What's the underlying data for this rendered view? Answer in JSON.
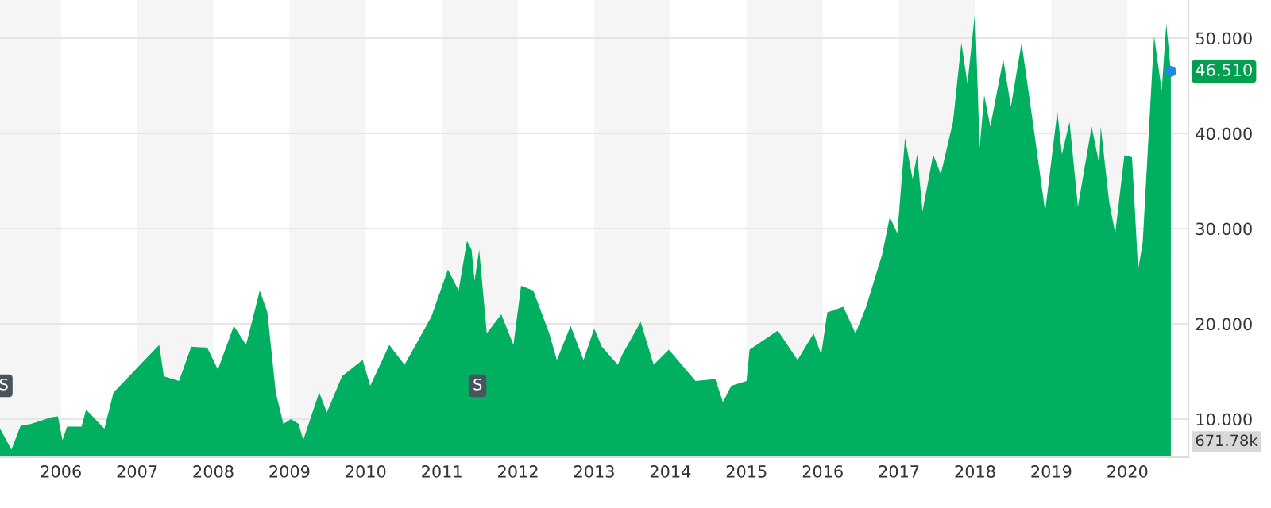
{
  "chart_data": {
    "type": "area",
    "x": [
      2005.2,
      2005.35,
      2005.47,
      2005.61,
      2005.88,
      2005.96,
      2006.02,
      2006.08,
      2006.27,
      2006.33,
      2006.57,
      2006.69,
      2006.98,
      2007.29,
      2007.35,
      2007.55,
      2007.71,
      2007.92,
      2008.06,
      2008.27,
      2008.43,
      2008.61,
      2008.71,
      2008.82,
      2008.92,
      2009.02,
      2009.12,
      2009.18,
      2009.39,
      2009.49,
      2009.69,
      2009.96,
      2010.06,
      2010.31,
      2010.51,
      2010.86,
      2011.08,
      2011.22,
      2011.33,
      2011.39,
      2011.43,
      2011.49,
      2011.59,
      2011.78,
      2011.94,
      2012.04,
      2012.2,
      2012.41,
      2012.51,
      2012.69,
      2012.86,
      2013.0,
      2013.1,
      2013.31,
      2013.37,
      2013.61,
      2013.78,
      2013.98,
      2014.33,
      2014.59,
      2014.69,
      2014.8,
      2015.0,
      2015.04,
      2015.41,
      2015.67,
      2015.88,
      2015.98,
      2016.06,
      2016.27,
      2016.43,
      2016.57,
      2016.78,
      2016.88,
      2016.98,
      2017.08,
      2017.18,
      2017.24,
      2017.31,
      2017.45,
      2017.55,
      2017.71,
      2017.82,
      2017.9,
      2018.0,
      2018.06,
      2018.12,
      2018.2,
      2018.37,
      2018.47,
      2018.61,
      2018.73,
      2018.92,
      2019.08,
      2019.14,
      2019.24,
      2019.35,
      2019.53,
      2019.63,
      2019.65,
      2019.76,
      2019.84,
      2019.96,
      2020.06,
      2020.14,
      2020.2,
      2020.35,
      2020.45,
      2020.51,
      2020.57
    ],
    "series": [
      {
        "color": "#00b060",
        "values": [
          9,
          6.8,
          9.3,
          9.5,
          10.2,
          10.3,
          7.8,
          9.2,
          9.2,
          11,
          9,
          12.8,
          15.2,
          17.8,
          14.5,
          14,
          17.6,
          17.5,
          15.2,
          19.8,
          17.8,
          23.5,
          21.2,
          12.8,
          9.5,
          10,
          9.5,
          7.8,
          12.8,
          10.7,
          14.5,
          16.2,
          13.5,
          17.8,
          15.7,
          20.7,
          25.7,
          23.5,
          28.7,
          27.8,
          24.5,
          27.8,
          19,
          21,
          17.8,
          24,
          23.5,
          19,
          16.2,
          19.8,
          16.2,
          19.5,
          17.6,
          15.7,
          16.8,
          20.2,
          15.7,
          17.3,
          14,
          14.2,
          11.8,
          13.5,
          14,
          17.3,
          19.3,
          16.2,
          19,
          16.8,
          21.2,
          21.8,
          19,
          21.8,
          27.3,
          31.2,
          29.5,
          39.5,
          35.2,
          37.8,
          31.8,
          37.8,
          35.7,
          41.2,
          49.5,
          45.2,
          52.8,
          38.5,
          44,
          40.7,
          47.8,
          42.8,
          49.5,
          42.8,
          31.8,
          42.3,
          37.8,
          41.2,
          32.3,
          40.7,
          36.8,
          40.7,
          32.8,
          29.5,
          37.7,
          37.5,
          25.7,
          28.5,
          50.2,
          44.5,
          51.5,
          46.51
        ]
      }
    ],
    "xlim": [
      2005.2,
      2020.8
    ],
    "xticks": [
      2006,
      2007,
      2008,
      2009,
      2010,
      2011,
      2012,
      2013,
      2014,
      2015,
      2016,
      2017,
      2018,
      2019,
      2020
    ],
    "ylim": [
      6,
      54
    ],
    "yticks": [
      {
        "value": 10,
        "label": "10.000"
      },
      {
        "value": 20,
        "label": "20.000"
      },
      {
        "value": 30,
        "label": "30.000"
      },
      {
        "value": 40,
        "label": "40.000"
      },
      {
        "value": 50,
        "label": "50.000"
      }
    ],
    "grid": "y",
    "bands": [
      {
        "axis": "x",
        "from": 2005.2,
        "to": 2006,
        "color": "#f5f5f5"
      },
      {
        "axis": "x",
        "from": 2007,
        "to": 2008,
        "color": "#f5f5f5"
      },
      {
        "axis": "x",
        "from": 2009,
        "to": 2010,
        "color": "#f5f5f5"
      },
      {
        "axis": "x",
        "from": 2011,
        "to": 2012,
        "color": "#f5f5f5"
      },
      {
        "axis": "x",
        "from": 2013,
        "to": 2014,
        "color": "#f5f5f5"
      },
      {
        "axis": "x",
        "from": 2015,
        "to": 2016,
        "color": "#f5f5f5"
      },
      {
        "axis": "x",
        "from": 2017,
        "to": 2018,
        "color": "#f5f5f5"
      },
      {
        "axis": "x",
        "from": 2019,
        "to": 2020,
        "color": "#f5f5f5"
      }
    ],
    "annotations": [
      {
        "text": "S",
        "x": 2005.25,
        "y": 13.5
      },
      {
        "text": "S",
        "x": 2011.47,
        "y": 13.5
      },
      {
        "text": "46.510",
        "x": 2020.57,
        "y": 46.51
      },
      "671.78k"
    ]
  }
}
